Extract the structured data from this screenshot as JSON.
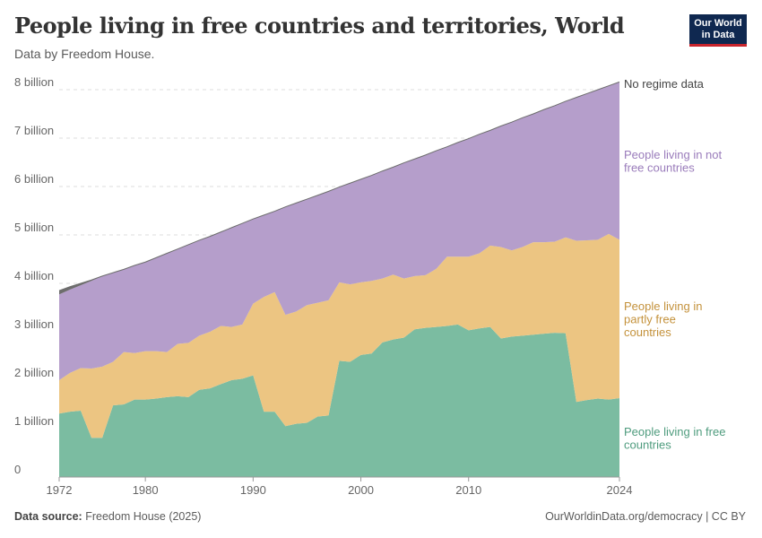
{
  "header": {
    "title": "People living in free countries and territories, World",
    "subtitle": "Data by Freedom House."
  },
  "logo": {
    "line1": "Our World",
    "line2": "in Data"
  },
  "footer": {
    "source_label": "Data source:",
    "source": "Freedom House (2025)",
    "link": "OurWorldinData.org/democracy | CC BY"
  },
  "chart_data": {
    "type": "area",
    "stacked": true,
    "title": "People living in free countries and territories, World",
    "ylim": [
      0,
      8500000000
    ],
    "yticks": [
      0,
      1,
      2,
      3,
      4,
      5,
      6,
      7,
      8
    ],
    "ytick_labels": [
      "0",
      "1 billion",
      "2 billion",
      "3 billion",
      "4 billion",
      "5 billion",
      "6 billion",
      "7 billion",
      "8 billion"
    ],
    "xticks": [
      1972,
      1980,
      1990,
      2000,
      2010,
      2024
    ],
    "xtick_labels": [
      "1972",
      "1980",
      "1990",
      "2000",
      "2010",
      "2024"
    ],
    "grid": "horizontal dashed",
    "legend": "right (inline labels)",
    "unit": "billion",
    "x": [
      1972,
      1973,
      1974,
      1975,
      1976,
      1977,
      1978,
      1979,
      1980,
      1981,
      1982,
      1983,
      1984,
      1985,
      1986,
      1987,
      1988,
      1989,
      1990,
      1991,
      1992,
      1993,
      1994,
      1995,
      1996,
      1997,
      1998,
      1999,
      2000,
      2001,
      2002,
      2003,
      2004,
      2005,
      2006,
      2007,
      2008,
      2009,
      2010,
      2011,
      2012,
      2013,
      2014,
      2015,
      2016,
      2017,
      2018,
      2019,
      2020,
      2021,
      2022,
      2023,
      2024
    ],
    "series": [
      {
        "name": "People living in free countries",
        "color": "#7bbca1",
        "label_color": "#4f9c7e",
        "values": [
          1.31,
          1.35,
          1.37,
          0.81,
          0.81,
          1.48,
          1.5,
          1.6,
          1.6,
          1.62,
          1.65,
          1.67,
          1.65,
          1.8,
          1.83,
          1.92,
          2.0,
          2.03,
          2.1,
          1.35,
          1.35,
          1.05,
          1.1,
          1.12,
          1.25,
          1.27,
          2.4,
          2.38,
          2.52,
          2.55,
          2.78,
          2.84,
          2.88,
          3.05,
          3.08,
          3.1,
          3.12,
          3.15,
          3.03,
          3.07,
          3.1,
          2.86,
          2.9,
          2.92,
          2.94,
          2.96,
          2.98,
          2.97,
          1.55,
          1.59,
          1.62,
          1.6,
          1.63
        ]
      },
      {
        "name": "People living in partly free countries",
        "color": "#ecc582",
        "label_color": "#c4923c",
        "values": [
          0.69,
          0.8,
          0.88,
          1.43,
          1.47,
          0.9,
          1.08,
          0.96,
          1.0,
          0.98,
          0.93,
          1.08,
          1.12,
          1.12,
          1.17,
          1.2,
          1.1,
          1.12,
          1.48,
          2.37,
          2.47,
          2.3,
          2.32,
          2.43,
          2.35,
          2.38,
          1.62,
          1.6,
          1.5,
          1.5,
          1.32,
          1.34,
          1.22,
          1.1,
          1.09,
          1.2,
          1.43,
          1.4,
          1.52,
          1.55,
          1.68,
          1.89,
          1.78,
          1.83,
          1.91,
          1.89,
          1.88,
          1.98,
          3.33,
          3.3,
          3.28,
          3.42,
          3.27
        ]
      },
      {
        "name": "People living in not free countries",
        "color": "#b59ecb",
        "label_color": "#9a7cbb",
        "values": [
          1.77,
          1.72,
          1.71,
          1.81,
          1.87,
          1.84,
          1.71,
          1.81,
          1.84,
          1.93,
          2.04,
          1.96,
          2.03,
          1.97,
          1.97,
          1.94,
          2.05,
          2.09,
          1.75,
          1.69,
          1.67,
          2.23,
          2.24,
          2.19,
          2.22,
          2.25,
          1.97,
          2.09,
          2.13,
          2.18,
          2.22,
          2.22,
          2.39,
          2.42,
          2.48,
          2.44,
          2.27,
          2.36,
          2.44,
          2.46,
          2.38,
          2.5,
          2.65,
          2.67,
          2.65,
          2.74,
          2.81,
          2.81,
          2.96,
          3.03,
          3.1,
          3.06,
          3.26
        ]
      },
      {
        "name": "No regime data",
        "color": "#6d6d6d",
        "label_color": "#444444",
        "values": [
          0.08,
          0.06,
          0.04,
          0.02,
          0,
          0,
          0,
          0,
          0,
          0,
          0,
          0,
          0,
          0,
          0,
          0,
          0,
          0,
          0,
          0,
          0,
          0,
          0,
          0,
          0,
          0,
          0,
          0,
          0,
          0,
          0,
          0,
          0,
          0,
          0,
          0,
          0,
          0,
          0,
          0,
          0,
          0,
          0,
          0,
          0,
          0,
          0,
          0,
          0,
          0,
          0,
          0,
          0
        ]
      }
    ],
    "labels": [
      {
        "lines": [
          "No regime data"
        ]
      },
      {
        "lines": [
          "People living in not",
          "free countries"
        ]
      },
      {
        "lines": [
          "People living in",
          "partly free",
          "countries"
        ]
      },
      {
        "lines": [
          "People living in free",
          "countries"
        ]
      }
    ]
  }
}
